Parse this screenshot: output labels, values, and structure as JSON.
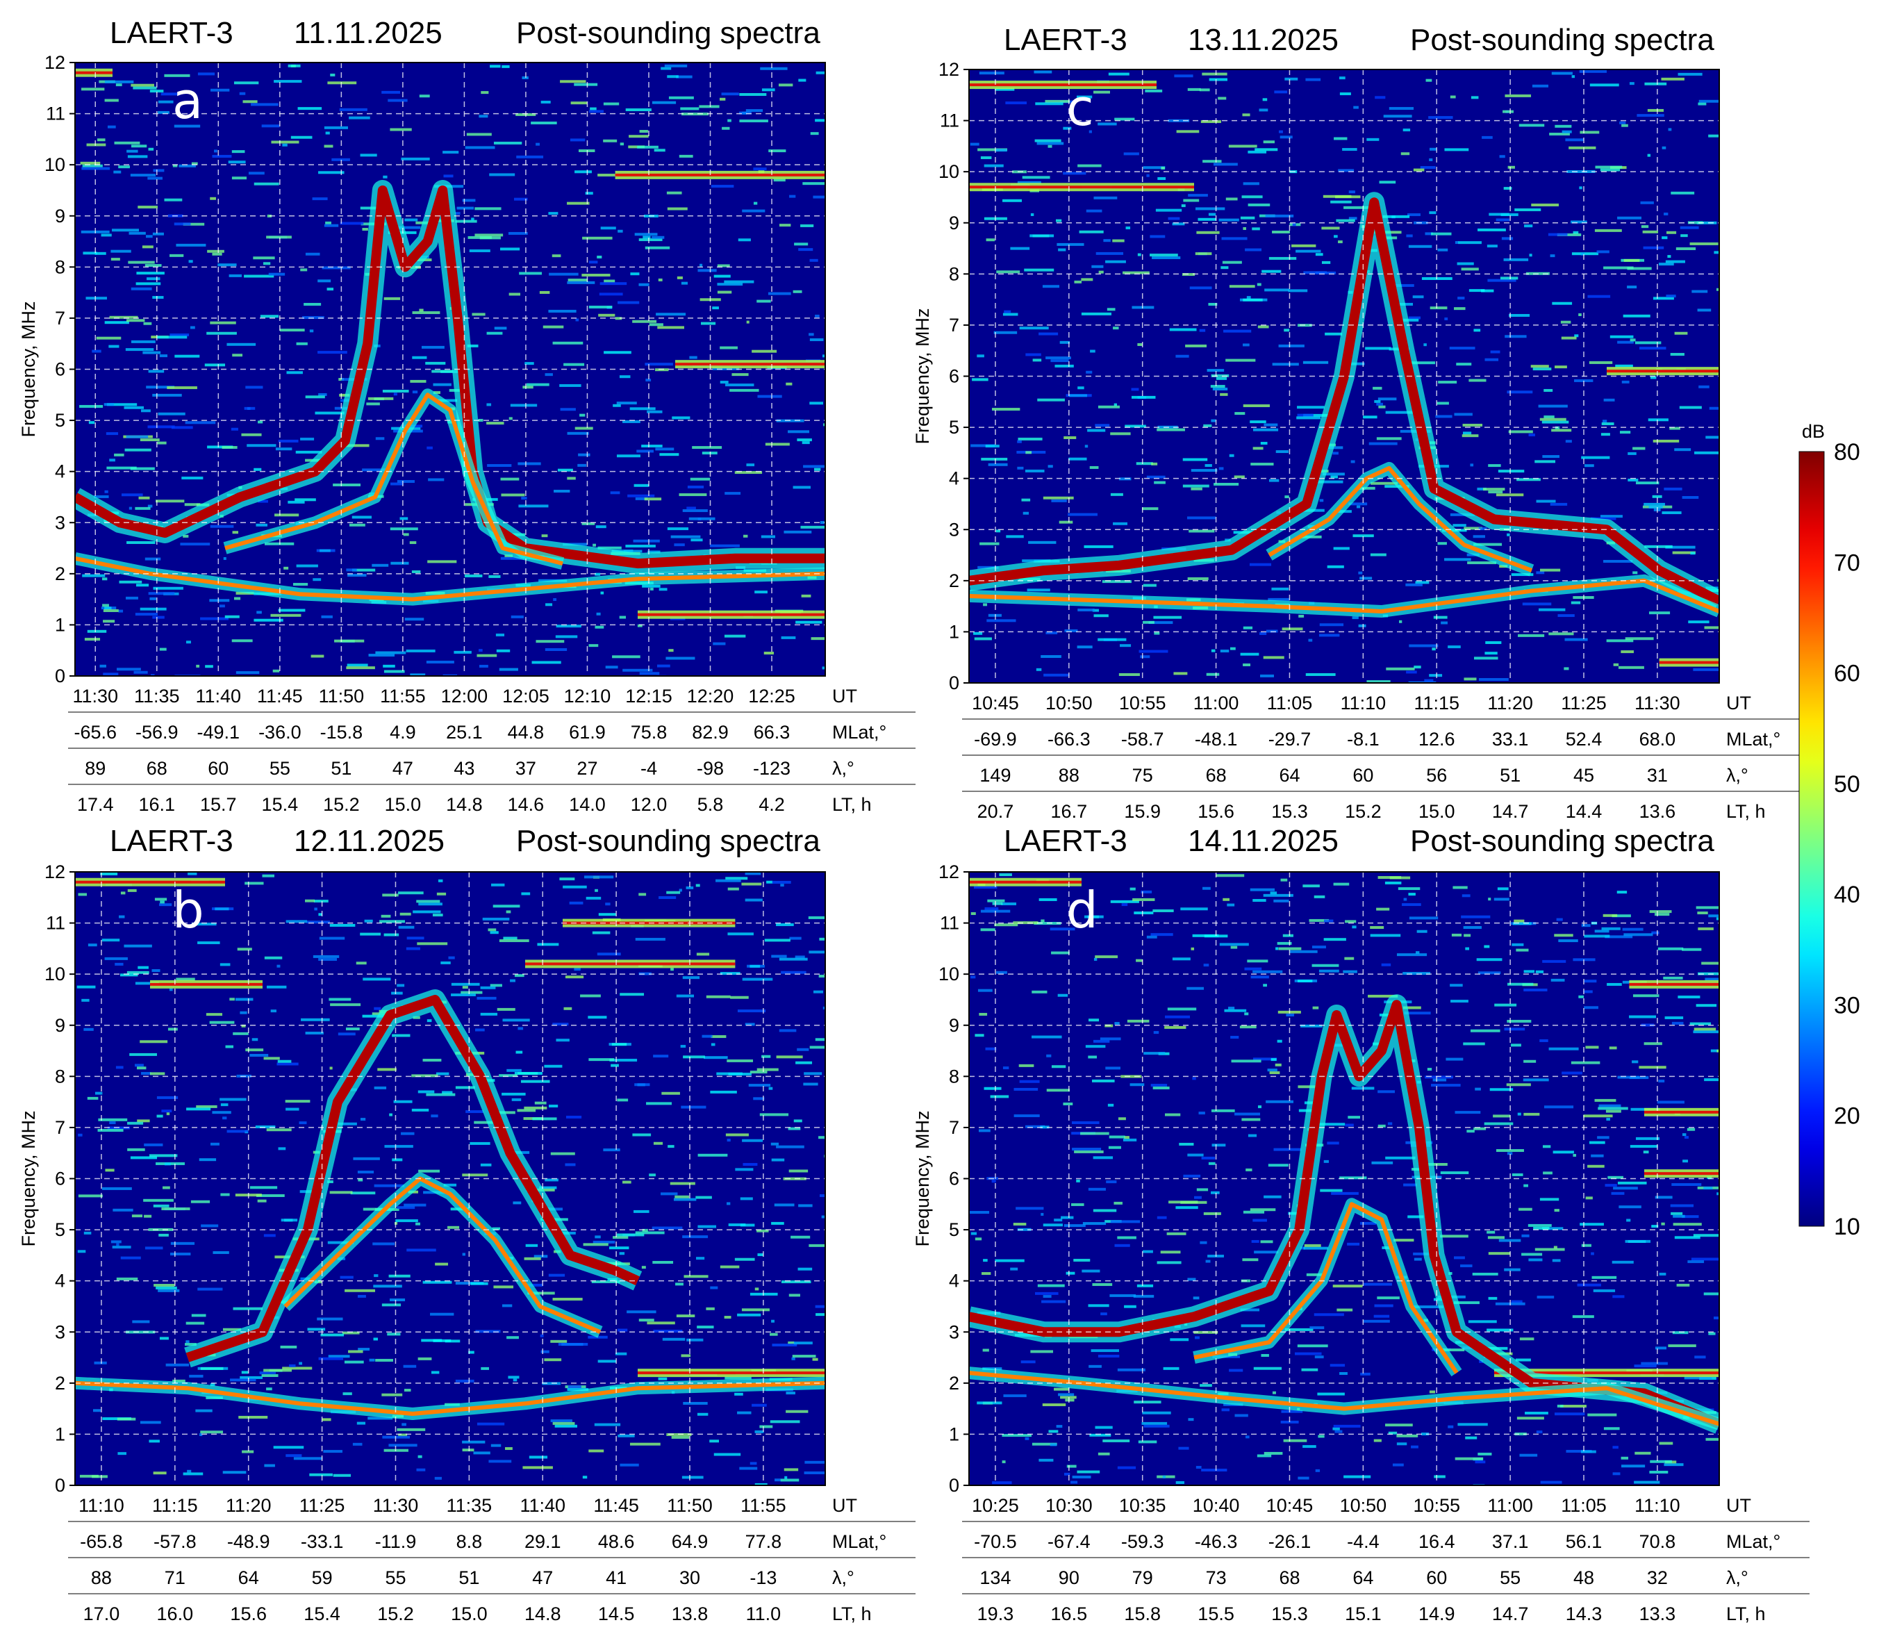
{
  "colorbar": {
    "unit": "dB",
    "ticks": [
      10,
      20,
      30,
      40,
      50,
      60,
      70,
      80
    ],
    "range": [
      10,
      80
    ],
    "colormap": "jet"
  },
  "chart_data": [
    {
      "type": "heatmap",
      "panel_letter": "a",
      "title_parts": [
        "LAERT-3",
        "11.11.2025",
        "Post-sounding spectra"
      ],
      "ylabel": "Frequency, MHz",
      "ylim": [
        0,
        12
      ],
      "y_ticks": [
        "0",
        "1",
        "2",
        "3",
        "4",
        "5",
        "6",
        "7",
        "8",
        "9",
        "10",
        "11",
        "12"
      ],
      "grid": true,
      "rows": [
        {
          "label": "UT",
          "values": [
            "11:30",
            "11:35",
            "11:40",
            "11:45",
            "11:50",
            "11:55",
            "12:00",
            "12:05",
            "12:10",
            "12:15",
            "12:20",
            "12:25"
          ]
        },
        {
          "label": "MLat,°",
          "values": [
            "-65.6",
            "-56.9",
            "-49.1",
            "-36.0",
            "-15.8",
            "4.9",
            "25.1",
            "44.8",
            "61.9",
            "75.8",
            "82.9",
            "66.3"
          ]
        },
        {
          "label": "λ,°",
          "values": [
            "89",
            "68",
            "60",
            "55",
            "51",
            "47",
            "43",
            "37",
            "27",
            "-4",
            "-98",
            "-123"
          ]
        },
        {
          "label": "LT, h",
          "values": [
            "17.4",
            "16.1",
            "15.7",
            "15.4",
            "15.2",
            "15.0",
            "14.8",
            "14.6",
            "14.0",
            "12.0",
            "5.8",
            "4.2"
          ]
        }
      ],
      "curves": [
        {
          "name": "upper trace",
          "points": [
            [
              0,
              3.5
            ],
            [
              0.06,
              3.0
            ],
            [
              0.12,
              2.8
            ],
            [
              0.22,
              3.5
            ],
            [
              0.32,
              4.0
            ],
            [
              0.36,
              4.6
            ],
            [
              0.39,
              6.5
            ],
            [
              0.41,
              9.5
            ],
            [
              0.44,
              8.0
            ],
            [
              0.47,
              8.5
            ],
            [
              0.49,
              9.5
            ],
            [
              0.51,
              7.0
            ],
            [
              0.53,
              4.0
            ],
            [
              0.55,
              3.0
            ],
            [
              0.6,
              2.5
            ],
            [
              0.75,
              2.2
            ],
            [
              0.88,
              2.3
            ],
            [
              1,
              2.3
            ]
          ]
        },
        {
          "name": "inner trace",
          "points": [
            [
              0.2,
              2.5
            ],
            [
              0.32,
              3.0
            ],
            [
              0.4,
              3.5
            ],
            [
              0.44,
              4.8
            ],
            [
              0.47,
              5.5
            ],
            [
              0.5,
              5.2
            ],
            [
              0.53,
              3.8
            ],
            [
              0.57,
              2.5
            ],
            [
              0.65,
              2.2
            ]
          ]
        },
        {
          "name": "lower trace",
          "points": [
            [
              0,
              2.3
            ],
            [
              0.1,
              2.0
            ],
            [
              0.3,
              1.6
            ],
            [
              0.45,
              1.5
            ],
            [
              0.6,
              1.7
            ],
            [
              0.75,
              1.9
            ],
            [
              1,
              2.0
            ]
          ]
        }
      ],
      "bands": [
        {
          "f": 11.8,
          "x0": 0,
          "x1": 0.05
        },
        {
          "f": 9.8,
          "x0": 0.72,
          "x1": 1
        },
        {
          "f": 6.1,
          "x0": 0.8,
          "x1": 1
        },
        {
          "f": 1.2,
          "x0": 0.75,
          "x1": 1
        }
      ]
    },
    {
      "type": "heatmap",
      "panel_letter": "c",
      "title_parts": [
        "LAERT-3",
        "13.11.2025",
        "Post-sounding spectra"
      ],
      "ylabel": "Frequency, MHz",
      "ylim": [
        0,
        12
      ],
      "y_ticks": [
        "0",
        "1",
        "2",
        "3",
        "4",
        "5",
        "6",
        "7",
        "8",
        "9",
        "10",
        "11",
        "12"
      ],
      "grid": true,
      "rows": [
        {
          "label": "UT",
          "values": [
            "10:45",
            "10:50",
            "10:55",
            "11:00",
            "11:05",
            "11:10",
            "11:15",
            "11:20",
            "11:25",
            "11:30"
          ]
        },
        {
          "label": "MLat,°",
          "values": [
            "-69.9",
            "-66.3",
            "-58.7",
            "-48.1",
            "-29.7",
            "-8.1",
            "12.6",
            "33.1",
            "52.4",
            "68.0"
          ]
        },
        {
          "label": "λ,°",
          "values": [
            "149",
            "88",
            "75",
            "68",
            "64",
            "60",
            "56",
            "51",
            "45",
            "31"
          ]
        },
        {
          "label": "LT, h",
          "values": [
            "20.7",
            "16.7",
            "15.9",
            "15.6",
            "15.3",
            "15.2",
            "15.0",
            "14.7",
            "14.4",
            "13.6"
          ]
        }
      ],
      "curves": [
        {
          "name": "upper trace",
          "points": [
            [
              0,
              2.0
            ],
            [
              0.1,
              2.2
            ],
            [
              0.2,
              2.3
            ],
            [
              0.35,
              2.6
            ],
            [
              0.45,
              3.5
            ],
            [
              0.5,
              6.0
            ],
            [
              0.54,
              9.4
            ],
            [
              0.58,
              6.5
            ],
            [
              0.62,
              3.8
            ],
            [
              0.7,
              3.2
            ],
            [
              0.85,
              3.0
            ],
            [
              0.92,
              2.2
            ],
            [
              1,
              1.6
            ]
          ]
        },
        {
          "name": "inner trace",
          "points": [
            [
              0.4,
              2.5
            ],
            [
              0.48,
              3.2
            ],
            [
              0.53,
              4.0
            ],
            [
              0.56,
              4.2
            ],
            [
              0.6,
              3.5
            ],
            [
              0.66,
              2.7
            ],
            [
              0.75,
              2.2
            ]
          ]
        },
        {
          "name": "lower trace",
          "points": [
            [
              0,
              1.7
            ],
            [
              0.2,
              1.6
            ],
            [
              0.4,
              1.5
            ],
            [
              0.55,
              1.4
            ],
            [
              0.75,
              1.8
            ],
            [
              0.9,
              2.0
            ],
            [
              1,
              1.4
            ]
          ]
        }
      ],
      "bands": [
        {
          "f": 11.7,
          "x0": 0,
          "x1": 0.25
        },
        {
          "f": 9.7,
          "x0": 0,
          "x1": 0.3
        },
        {
          "f": 6.1,
          "x0": 0.85,
          "x1": 1
        },
        {
          "f": 0.4,
          "x0": 0.92,
          "x1": 1
        }
      ]
    },
    {
      "type": "heatmap",
      "panel_letter": "b",
      "title_parts": [
        "LAERT-3",
        "12.11.2025",
        "Post-sounding spectra"
      ],
      "ylabel": "Frequency, MHz",
      "ylim": [
        0,
        12
      ],
      "y_ticks": [
        "0",
        "1",
        "2",
        "3",
        "4",
        "5",
        "6",
        "7",
        "8",
        "9",
        "10",
        "11",
        "12"
      ],
      "grid": true,
      "rows": [
        {
          "label": "UT",
          "values": [
            "11:10",
            "11:15",
            "11:20",
            "11:25",
            "11:30",
            "11:35",
            "11:40",
            "11:45",
            "11:50",
            "11:55"
          ]
        },
        {
          "label": "MLat,°",
          "values": [
            "-65.8",
            "-57.8",
            "-48.9",
            "-33.1",
            "-11.9",
            "8.8",
            "29.1",
            "48.6",
            "64.9",
            "77.8"
          ]
        },
        {
          "label": "λ,°",
          "values": [
            "88",
            "71",
            "64",
            "59",
            "55",
            "51",
            "47",
            "41",
            "30",
            "-13"
          ]
        },
        {
          "label": "LT, h",
          "values": [
            "17.0",
            "16.0",
            "15.6",
            "15.4",
            "15.2",
            "15.0",
            "14.8",
            "14.5",
            "13.8",
            "11.0"
          ]
        }
      ],
      "curves": [
        {
          "name": "upper trace",
          "points": [
            [
              0.15,
              2.5
            ],
            [
              0.25,
              3.0
            ],
            [
              0.31,
              5.0
            ],
            [
              0.35,
              7.5
            ],
            [
              0.42,
              9.2
            ],
            [
              0.48,
              9.5
            ],
            [
              0.54,
              8.0
            ],
            [
              0.58,
              6.5
            ],
            [
              0.62,
              5.5
            ],
            [
              0.66,
              4.5
            ],
            [
              0.72,
              4.2
            ],
            [
              0.75,
              4.0
            ]
          ]
        },
        {
          "name": "inner trace",
          "points": [
            [
              0.28,
              3.5
            ],
            [
              0.35,
              4.5
            ],
            [
              0.42,
              5.5
            ],
            [
              0.46,
              6.0
            ],
            [
              0.5,
              5.7
            ],
            [
              0.56,
              4.8
            ],
            [
              0.62,
              3.5
            ],
            [
              0.7,
              3.0
            ]
          ]
        },
        {
          "name": "lower trace",
          "points": [
            [
              0,
              2.0
            ],
            [
              0.15,
              1.9
            ],
            [
              0.3,
              1.6
            ],
            [
              0.45,
              1.4
            ],
            [
              0.6,
              1.6
            ],
            [
              0.75,
              1.9
            ],
            [
              1,
              2.0
            ]
          ]
        }
      ],
      "bands": [
        {
          "f": 11.8,
          "x0": 0,
          "x1": 0.2
        },
        {
          "f": 9.8,
          "x0": 0.1,
          "x1": 0.25
        },
        {
          "f": 10.2,
          "x0": 0.6,
          "x1": 0.88
        },
        {
          "f": 11.0,
          "x0": 0.65,
          "x1": 0.88
        },
        {
          "f": 2.2,
          "x0": 0.75,
          "x1": 1
        }
      ]
    },
    {
      "type": "heatmap",
      "panel_letter": "d",
      "title_parts": [
        "LAERT-3",
        "14.11.2025",
        "Post-sounding spectra"
      ],
      "ylabel": "Frequency, MHz",
      "ylim": [
        0,
        12
      ],
      "y_ticks": [
        "0",
        "1",
        "2",
        "3",
        "4",
        "5",
        "6",
        "7",
        "8",
        "9",
        "10",
        "11",
        "12"
      ],
      "grid": true,
      "rows": [
        {
          "label": "UT",
          "values": [
            "10:25",
            "10:30",
            "10:35",
            "10:40",
            "10:45",
            "10:50",
            "10:55",
            "11:00",
            "11:05",
            "11:10"
          ]
        },
        {
          "label": "MLat,°",
          "values": [
            "-70.5",
            "-67.4",
            "-59.3",
            "-46.3",
            "-26.1",
            "-4.4",
            "16.4",
            "37.1",
            "56.1",
            "70.8"
          ]
        },
        {
          "label": "λ,°",
          "values": [
            "134",
            "90",
            "79",
            "73",
            "68",
            "64",
            "60",
            "55",
            "48",
            "32"
          ]
        },
        {
          "label": "LT, h",
          "values": [
            "19.3",
            "16.5",
            "15.8",
            "15.5",
            "15.3",
            "15.1",
            "14.9",
            "14.7",
            "14.3",
            "13.3"
          ]
        }
      ],
      "curves": [
        {
          "name": "upper trace",
          "points": [
            [
              0,
              3.3
            ],
            [
              0.1,
              3.0
            ],
            [
              0.2,
              3.0
            ],
            [
              0.3,
              3.3
            ],
            [
              0.4,
              3.8
            ],
            [
              0.44,
              5.0
            ],
            [
              0.47,
              8.0
            ],
            [
              0.49,
              9.2
            ],
            [
              0.52,
              8.0
            ],
            [
              0.55,
              8.5
            ],
            [
              0.57,
              9.4
            ],
            [
              0.6,
              7.0
            ],
            [
              0.62,
              4.5
            ],
            [
              0.65,
              3.0
            ],
            [
              0.75,
              2.0
            ],
            [
              0.9,
              1.8
            ],
            [
              1,
              1.2
            ]
          ]
        },
        {
          "name": "inner trace",
          "points": [
            [
              0.3,
              2.5
            ],
            [
              0.4,
              2.8
            ],
            [
              0.47,
              4.0
            ],
            [
              0.51,
              5.5
            ],
            [
              0.55,
              5.2
            ],
            [
              0.59,
              3.5
            ],
            [
              0.65,
              2.2
            ]
          ]
        },
        {
          "name": "lower trace",
          "points": [
            [
              0,
              2.2
            ],
            [
              0.15,
              2.0
            ],
            [
              0.35,
              1.7
            ],
            [
              0.5,
              1.5
            ],
            [
              0.65,
              1.7
            ],
            [
              0.85,
              1.9
            ],
            [
              1,
              1.2
            ]
          ]
        }
      ],
      "bands": [
        {
          "f": 11.8,
          "x0": 0,
          "x1": 0.15
        },
        {
          "f": 9.8,
          "x0": 0.88,
          "x1": 1
        },
        {
          "f": 7.3,
          "x0": 0.9,
          "x1": 1
        },
        {
          "f": 6.1,
          "x0": 0.9,
          "x1": 1
        },
        {
          "f": 2.2,
          "x0": 0.7,
          "x1": 1
        }
      ]
    }
  ]
}
